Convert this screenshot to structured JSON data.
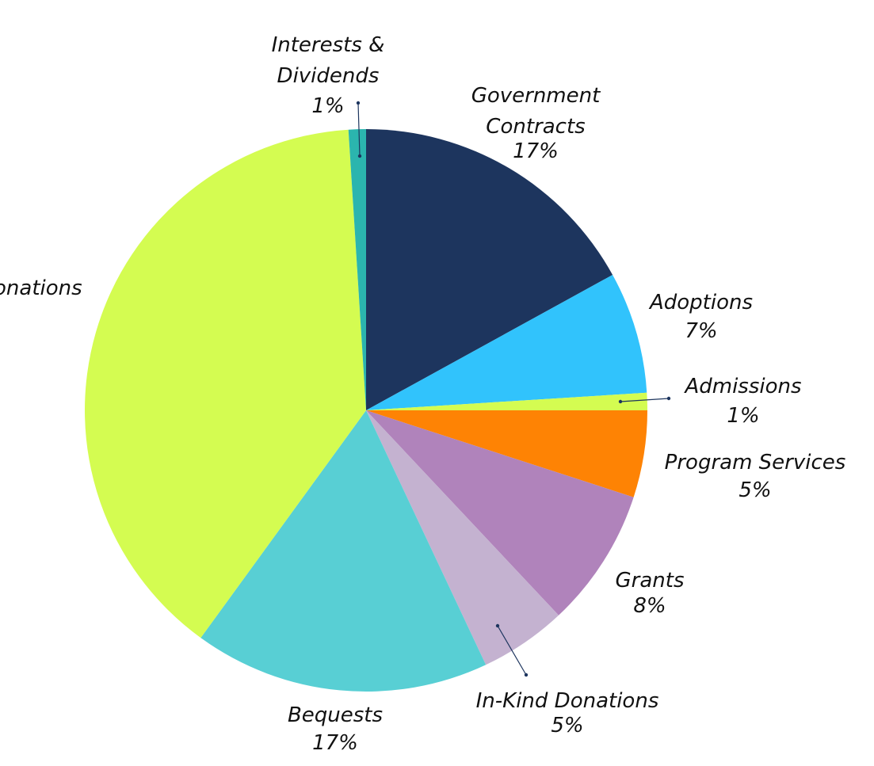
{
  "chart_data": {
    "type": "pie",
    "title": "",
    "slices": [
      {
        "name": "Government Contracts",
        "label_lines": [
          "Government",
          "Contracts"
        ],
        "value": 17,
        "value_label": "17%",
        "color": "#1d355e"
      },
      {
        "name": "Adoptions",
        "label_lines": [
          "Adoptions"
        ],
        "value": 7,
        "value_label": "7%",
        "color": "#31c3fc"
      },
      {
        "name": "Admissions",
        "label_lines": [
          "Admissions"
        ],
        "value": 1,
        "value_label": "1%",
        "color": "#d4fc51"
      },
      {
        "name": "Program Services",
        "label_lines": [
          "Program Services"
        ],
        "value": 5,
        "value_label": "5%",
        "color": "#fe8304"
      },
      {
        "name": "Grants",
        "label_lines": [
          "Grants"
        ],
        "value": 8,
        "value_label": "8%",
        "color": "#b083bb"
      },
      {
        "name": "In-Kind Donations",
        "label_lines": [
          "In-Kind Donations"
        ],
        "value": 5,
        "value_label": "5%",
        "color": "#c4b2d0"
      },
      {
        "name": "Bequests",
        "label_lines": [
          "Bequests"
        ],
        "value": 17,
        "value_label": "17%",
        "color": "#58cfd4"
      },
      {
        "name": "Donations",
        "label_lines": [
          "onations"
        ],
        "value": 39,
        "value_label": "",
        "color": "#d4fc51"
      },
      {
        "name": "Interests & Dividends",
        "label_lines": [
          "Interests &",
          "Dividends"
        ],
        "value": 1,
        "value_label": "1%",
        "color": "#2bb5ae"
      }
    ],
    "legend": "none"
  }
}
